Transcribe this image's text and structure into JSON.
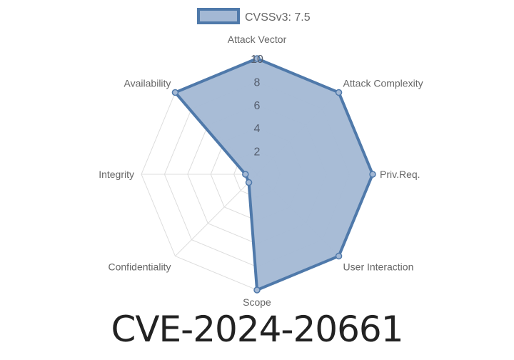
{
  "title": "CVE-2024-20661",
  "chart_data": {
    "type": "radar",
    "axes": [
      "Attack Vector",
      "Attack Complexity",
      "Priv.Req.",
      "User Interaction",
      "Scope",
      "Confidentiality",
      "Integrity",
      "Availability"
    ],
    "series": [
      {
        "name": "CVSSv3: 7.5",
        "values": [
          10,
          10,
          10,
          10,
          10,
          1,
          1,
          10
        ]
      }
    ],
    "rlim": [
      0,
      10
    ],
    "ticks": [
      "2",
      "4",
      "6",
      "8",
      "10"
    ],
    "grid": true,
    "legend": "top",
    "colors": {
      "fill": "#a3b8d4",
      "stroke": "#4f79aa",
      "grid": "#dddddd"
    }
  }
}
